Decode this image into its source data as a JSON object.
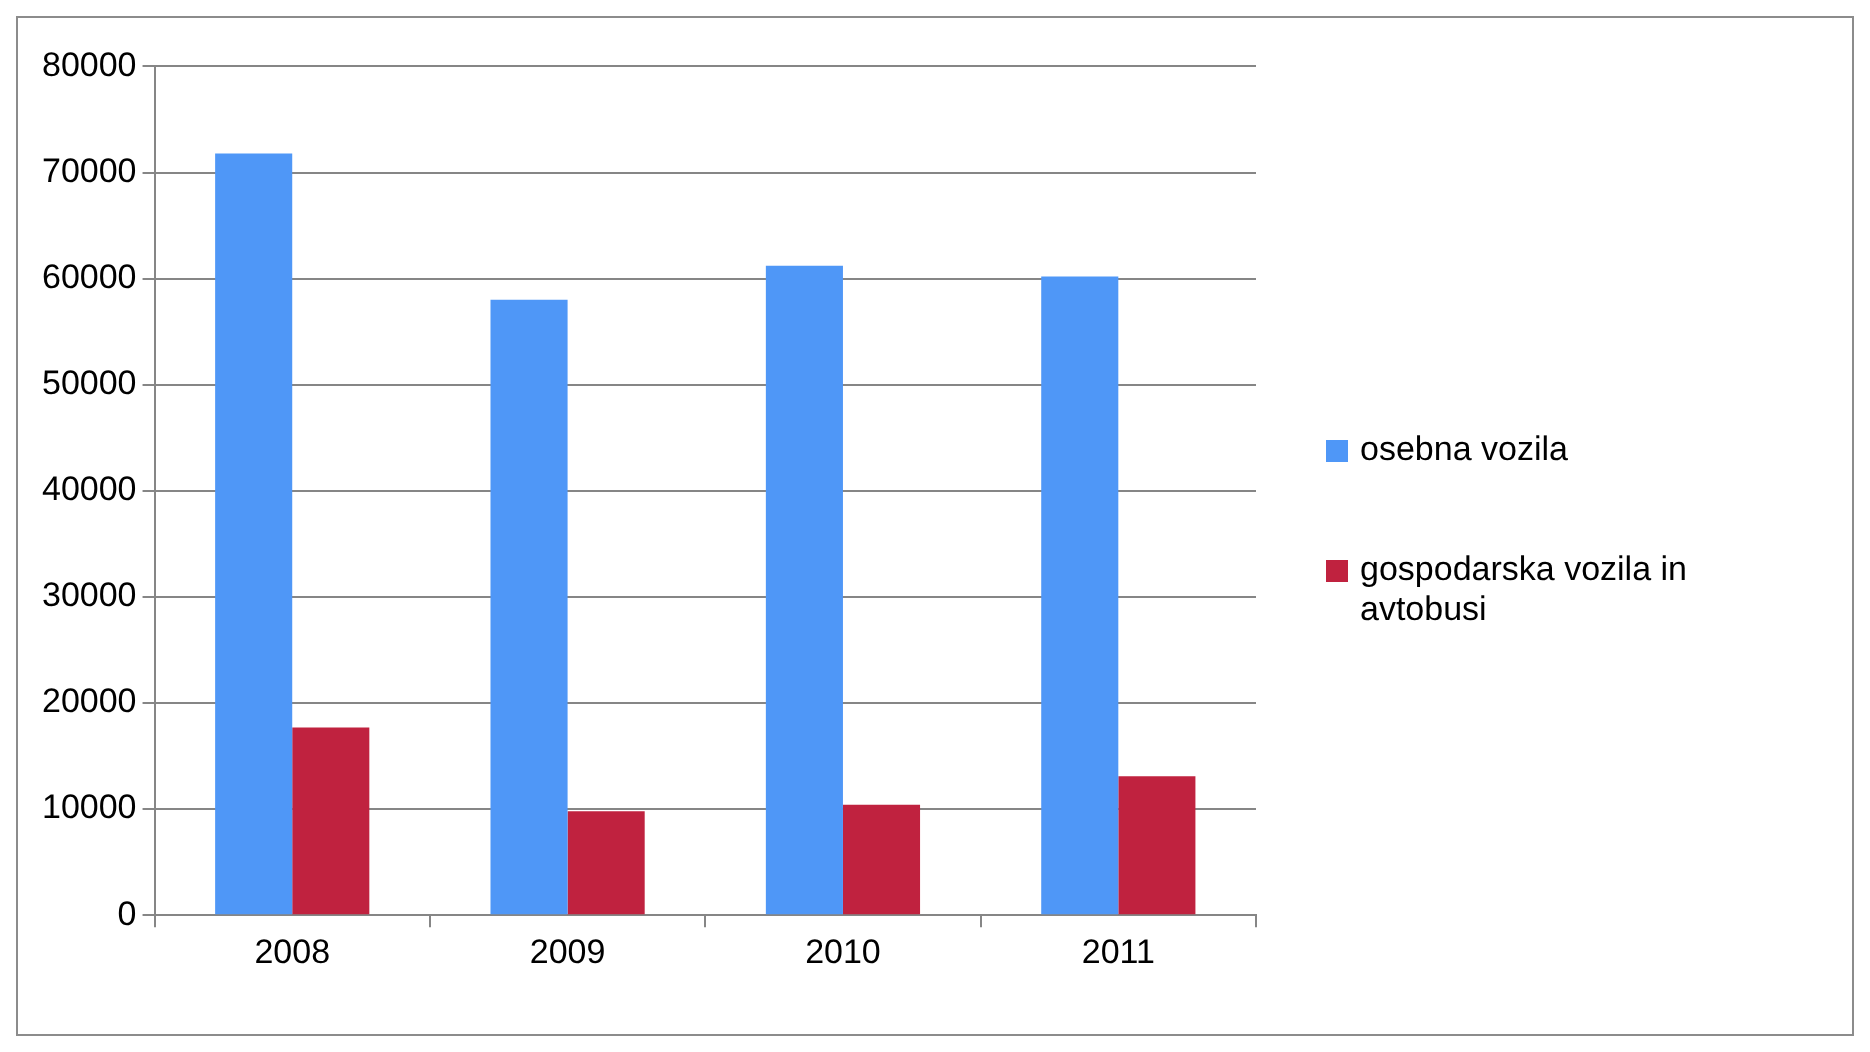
{
  "chart_data": {
    "type": "bar",
    "categories": [
      "2008",
      "2009",
      "2010",
      "2011"
    ],
    "series": [
      {
        "name": "osebna vozila",
        "color": "#4f97f7",
        "values": [
          71800,
          58000,
          61200,
          60200
        ]
      },
      {
        "name": "gospodarska vozila in avtobusi",
        "color": "#c0223f",
        "values": [
          17700,
          9800,
          10400,
          13100
        ]
      }
    ],
    "ylim": [
      0,
      80000
    ],
    "yticks": [
      0,
      10000,
      20000,
      30000,
      40000,
      50000,
      60000,
      70000,
      80000
    ],
    "grid": "y",
    "legend": "right"
  }
}
